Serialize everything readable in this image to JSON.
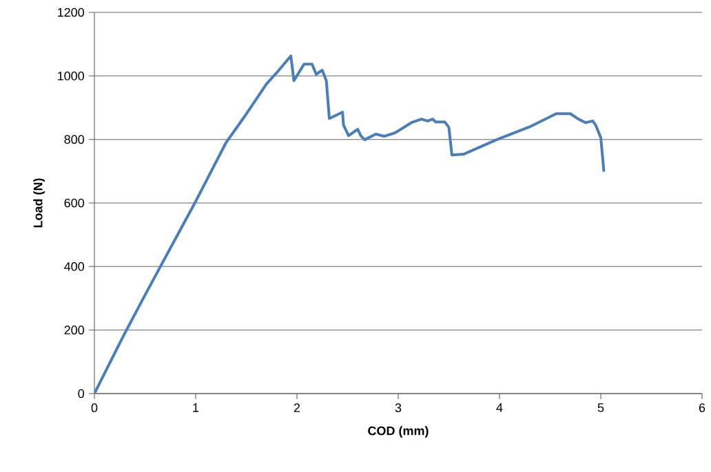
{
  "chart_data": {
    "type": "line",
    "xlabel": "COD (mm)",
    "ylabel": "Load (N)",
    "x": [
      0,
      0.3,
      0.5,
      1.0,
      1.3,
      1.5,
      1.7,
      1.8,
      1.94,
      1.97,
      2.07,
      2.15,
      2.19,
      2.25,
      2.29,
      2.32,
      2.45,
      2.46,
      2.51,
      2.6,
      2.63,
      2.67,
      2.78,
      2.86,
      2.97,
      3.13,
      3.23,
      3.29,
      3.34,
      3.37,
      3.46,
      3.5,
      3.53,
      3.65,
      3.97,
      4.3,
      4.56,
      4.7,
      4.78,
      4.85,
      4.92,
      4.95,
      5.0,
      5.03
    ],
    "series": [
      {
        "color": "#4a7ebb",
        "values": [
          0,
          190,
          310,
          605,
          790,
          880,
          975,
          1010,
          1063,
          985,
          1037,
          1037,
          1005,
          1018,
          985,
          866,
          886,
          845,
          812,
          832,
          812,
          799,
          817,
          810,
          821,
          853,
          864,
          858,
          864,
          855,
          855,
          838,
          751,
          754,
          799,
          840,
          881,
          881,
          864,
          853,
          858,
          845,
          806,
          702
        ]
      }
    ],
    "xlim": [
      0,
      6
    ],
    "ylim": [
      0,
      1200
    ],
    "xticks": [
      0,
      1,
      2,
      3,
      4,
      5,
      6
    ],
    "yticks": [
      0,
      200,
      400,
      600,
      800,
      1000,
      1200
    ],
    "grid": "y",
    "marker": "none",
    "line_style": "solid"
  }
}
